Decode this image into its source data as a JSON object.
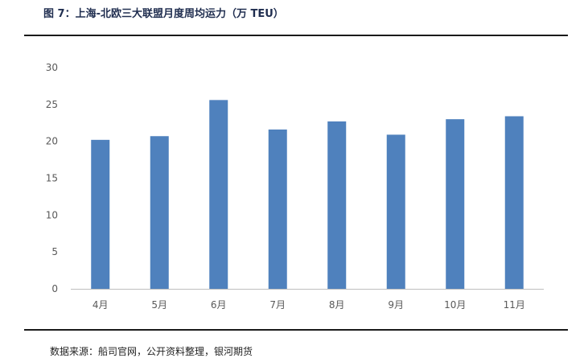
{
  "title": "图 7：上海-北欧三大联盟月度周均运力（万 TEU）",
  "source": "数据来源：船司官网，公开资料整理，银河期货",
  "colors": {
    "bar": "#4f81bd",
    "axis": "#bfbfbf",
    "rule": "#1a1a1a",
    "title": "#1f2d4f"
  },
  "chart_data": {
    "type": "bar",
    "title": "图 7：上海-北欧三大联盟月度周均运力（万 TEU）",
    "xlabel": "",
    "ylabel": "",
    "categories": [
      "4月",
      "5月",
      "6月",
      "7月",
      "8月",
      "9月",
      "10月",
      "11月"
    ],
    "values": [
      20.2,
      20.7,
      25.6,
      21.6,
      22.7,
      20.9,
      23.0,
      23.4
    ],
    "ylim": [
      0,
      30
    ],
    "yticks": [
      0,
      5,
      10,
      15,
      20,
      25,
      30
    ],
    "grid": false,
    "legend": "none"
  }
}
